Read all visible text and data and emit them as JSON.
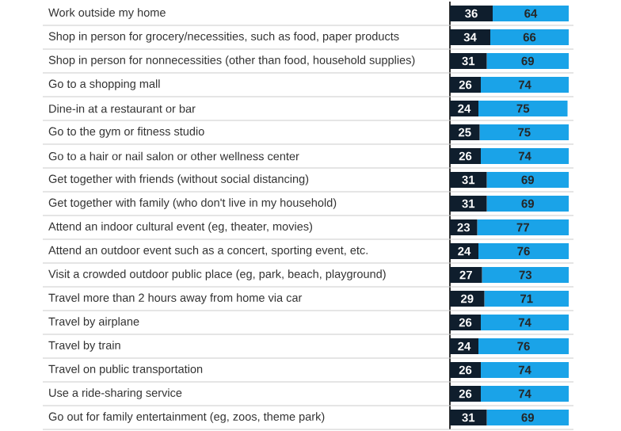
{
  "chart_data": {
    "type": "bar",
    "orientation": "horizontal",
    "stacked": true,
    "data_labels": true,
    "grid": "y",
    "categories": [
      "Work outside my home",
      "Shop in person for grocery/necessities, such as food, paper products",
      "Shop in person for nonnecessities (other than food, household supplies)",
      "Go to a shopping mall",
      "Dine-in at a restaurant or bar",
      "Go to the gym or fitness studio",
      "Go to a hair or nail salon or other wellness center",
      "Get together with friends (without social distancing)",
      "Get together with family (who don't live in my household)",
      "Attend an indoor cultural event (eg, theater, movies)",
      "Attend an outdoor event such as a concert, sporting event, etc.",
      "Visit a crowded outdoor public place (eg, park, beach, playground)",
      "Travel more than 2 hours away from home via car",
      "Travel by airplane",
      "Travel by train",
      "Travel on public transportation",
      "Use a ride-sharing service",
      "Go out for family entertainment (eg, zoos, theme park)"
    ],
    "series": [
      {
        "color": "#0f1e2d",
        "values": [
          36,
          34,
          31,
          26,
          24,
          25,
          26,
          31,
          31,
          23,
          24,
          27,
          29,
          26,
          24,
          26,
          26,
          31
        ]
      },
      {
        "color": "#1aa3e8",
        "values": [
          64,
          66,
          69,
          74,
          75,
          75,
          74,
          69,
          69,
          77,
          76,
          73,
          71,
          74,
          76,
          74,
          74,
          69
        ]
      }
    ]
  }
}
